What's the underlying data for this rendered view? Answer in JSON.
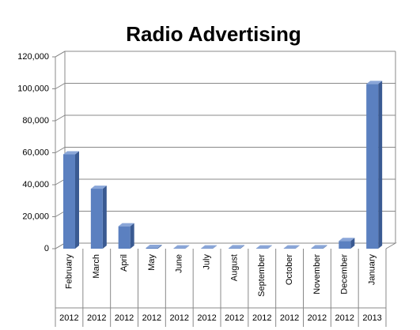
{
  "chart_data": {
    "type": "bar",
    "title": "Radio Advertising",
    "categories": [
      "February",
      "March",
      "April",
      "May",
      "June",
      "July",
      "August",
      "September",
      "October",
      "November",
      "December",
      "January"
    ],
    "years": [
      "2012",
      "2012",
      "2012",
      "2012",
      "2012",
      "2012",
      "2012",
      "2012",
      "2012",
      "2012",
      "2012",
      "2013"
    ],
    "values": [
      59000,
      37500,
      14000,
      500,
      200,
      200,
      300,
      200,
      200,
      300,
      4800,
      103000
    ],
    "color": "#5b80c0",
    "ylim": [
      0,
      120000
    ],
    "yticks": [
      0,
      {
        "value": 20000,
        "label": "20,000"
      },
      {
        "value": 40000,
        "label": "40,000"
      },
      {
        "value": 60000,
        "label": "60,000"
      },
      {
        "value": 80000,
        "label": "80,000"
      },
      {
        "value": 100000,
        "label": "100,000"
      },
      {
        "value": 120000,
        "label": "120,000"
      }
    ],
    "grid": true
  }
}
